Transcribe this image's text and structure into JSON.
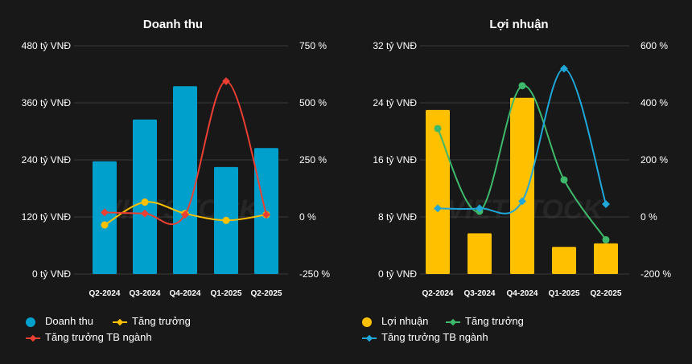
{
  "chart_data": [
    {
      "type": "bar",
      "title": "Doanh thu",
      "categories": [
        "Q2-2024",
        "Q3-2024",
        "Q4-2024",
        "Q1-2025",
        "Q2-2025"
      ],
      "left_axis": {
        "ticks": [
          "0 tỷ VNĐ",
          "120 tỷ VNĐ",
          "240 tỷ VNĐ",
          "360 tỷ VNĐ",
          "480 tỷ VNĐ"
        ],
        "ylim": [
          0,
          480
        ]
      },
      "right_axis": {
        "ticks": [
          "-250 %",
          "0 %",
          "250 %",
          "500 %",
          "750 %"
        ],
        "ylim": [
          -250,
          750
        ]
      },
      "series": [
        {
          "name": "Doanh thu",
          "kind": "bar",
          "axis": "left",
          "color": "#00a0cc",
          "values": [
            237,
            325,
            395,
            225,
            265
          ]
        },
        {
          "name": "Tăng trưởng",
          "kind": "line",
          "axis": "right",
          "color": "#ffc000",
          "values": [
            -35,
            65,
            15,
            -15,
            10
          ]
        },
        {
          "name": "Tăng trưởng TB ngành",
          "kind": "line",
          "axis": "right",
          "color": "#ea3f32",
          "values": [
            20,
            15,
            10,
            595,
            10
          ]
        }
      ]
    },
    {
      "type": "bar",
      "title": "Lợi nhuận",
      "categories": [
        "Q2-2024",
        "Q3-2024",
        "Q4-2024",
        "Q1-2025",
        "Q2-2025"
      ],
      "left_axis": {
        "ticks": [
          "0 tỷ VNĐ",
          "8 tỷ VNĐ",
          "16 tỷ VNĐ",
          "24 tỷ VNĐ",
          "32 tỷ VNĐ"
        ],
        "ylim": [
          0,
          32
        ]
      },
      "right_axis": {
        "ticks": [
          "-200 %",
          "0 %",
          "200 %",
          "400 %",
          "600 %"
        ],
        "ylim": [
          -200,
          600
        ]
      },
      "series": [
        {
          "name": "Lợi nhuận",
          "kind": "bar",
          "axis": "left",
          "color": "#ffc000",
          "values": [
            23,
            5.7,
            24.7,
            3.8,
            4.3
          ]
        },
        {
          "name": "Tăng trưởng",
          "kind": "line",
          "axis": "right",
          "color": "#3eb86b",
          "values": [
            310,
            20,
            460,
            130,
            -80
          ]
        },
        {
          "name": "Tăng trưởng TB ngành",
          "kind": "line",
          "axis": "right",
          "color": "#1fa7d9",
          "values": [
            30,
            30,
            55,
            520,
            45
          ]
        }
      ]
    }
  ],
  "watermark": "VIETSTOCK"
}
